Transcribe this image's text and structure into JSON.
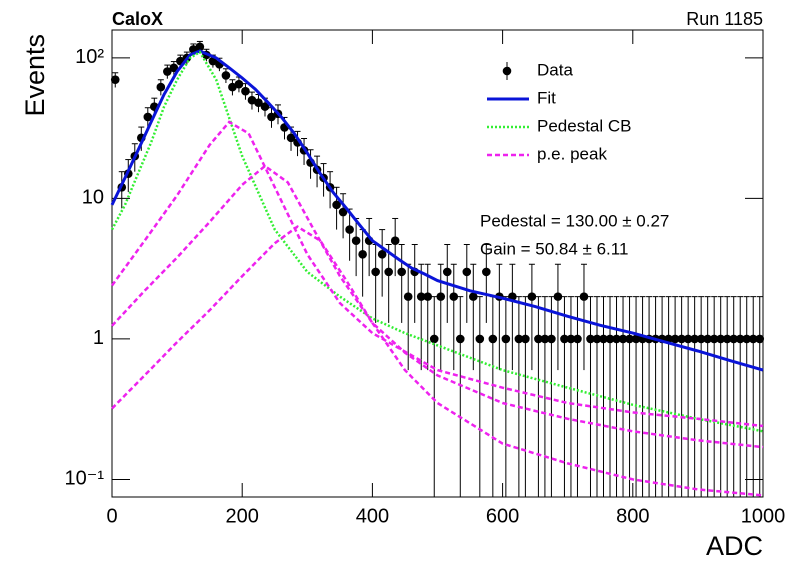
{
  "chart_data": {
    "type": "scatter",
    "title": "CaloX",
    "subtitle": "Run 1185",
    "x_label": "ADC",
    "y_label": "Events",
    "annotations": [
      "Pedestal = 130.00 ± 0.27",
      "Gain = 50.84 ± 6.11"
    ],
    "ylog": true,
    "xlim": [
      0,
      1000
    ],
    "ylim": [
      0.075,
      158
    ],
    "xticks": [
      0,
      200,
      400,
      600,
      800,
      1000
    ],
    "yticks": [
      {
        "value": 0.1,
        "label": "10⁻¹"
      },
      1,
      10,
      {
        "value": 100,
        "label": "10²"
      }
    ],
    "legend": "top-right",
    "series": [
      {
        "name": "Data",
        "color": "#000000",
        "style": "markers",
        "x": [
          5,
          15,
          25,
          35,
          45,
          55,
          65,
          75,
          85,
          95,
          105,
          115,
          125,
          135,
          145,
          155,
          165,
          175,
          185,
          195,
          205,
          215,
          225,
          235,
          245,
          255,
          265,
          275,
          285,
          295,
          305,
          315,
          325,
          335,
          345,
          355,
          365,
          375,
          385,
          395,
          405,
          415,
          425,
          435,
          445,
          455,
          465,
          475,
          485,
          495,
          505,
          515,
          525,
          535,
          545,
          555,
          565,
          575,
          585,
          595,
          605,
          615,
          625,
          635,
          645,
          655,
          665,
          675,
          685,
          695,
          705,
          715,
          725,
          735,
          745,
          755,
          765,
          775,
          785,
          795,
          805,
          815,
          825,
          835,
          845,
          855,
          865,
          875,
          885,
          895,
          905,
          915,
          925,
          935,
          945,
          955,
          965,
          975,
          985,
          995
        ],
        "values": [
          70,
          12,
          15,
          20,
          27,
          38,
          45,
          62,
          80,
          85,
          95,
          100,
          115,
          120,
          105,
          95,
          90,
          75,
          62,
          65,
          58,
          50,
          48,
          45,
          38,
          40,
          32,
          27,
          25,
          22,
          18,
          16,
          14,
          12,
          9,
          8,
          6,
          5,
          4,
          5,
          3,
          4,
          3,
          5,
          3,
          2,
          3,
          2,
          2,
          1,
          2,
          3,
          2,
          1,
          3,
          2,
          1,
          3,
          1,
          2,
          1,
          2,
          1,
          1,
          2,
          1,
          1,
          1,
          2,
          1,
          1,
          1,
          2,
          1,
          1,
          1,
          1,
          1,
          1,
          1,
          1,
          1,
          1,
          1,
          1,
          1,
          1,
          1,
          1,
          1,
          1,
          1,
          1,
          1,
          1,
          1,
          1,
          1,
          1,
          1
        ],
        "errors": [
          8.4,
          3.5,
          3.9,
          4.5,
          5.2,
          6.2,
          6.7,
          7.9,
          8.9,
          9.2,
          9.7,
          10,
          10.7,
          11,
          10.2,
          9.7,
          9.5,
          8.7,
          7.9,
          8.1,
          7.6,
          7.1,
          6.9,
          6.7,
          6.2,
          6.3,
          5.7,
          5.2,
          5,
          4.7,
          4.2,
          4,
          3.7,
          3.5,
          3,
          2.8,
          2.4,
          2.2,
          2,
          2.2,
          1.7,
          2,
          1.7,
          2.2,
          1.7,
          1.4,
          1.7,
          1.4,
          1.4,
          1,
          1.4,
          1.7,
          1.4,
          1,
          1.7,
          1.4,
          1,
          1.7,
          1,
          1.4,
          1,
          1.4,
          1,
          1,
          1.4,
          1,
          1,
          1,
          1.4,
          1,
          1,
          1,
          1.4,
          1,
          1,
          1,
          1,
          1,
          1,
          1,
          1,
          1,
          1,
          1,
          1,
          1,
          1,
          1,
          1,
          1,
          1,
          1,
          1,
          1,
          1,
          1,
          1,
          1,
          1,
          1
        ]
      },
      {
        "name": "Fit",
        "color": "#0a14d8",
        "style": "solid",
        "x": [
          0,
          20,
          40,
          60,
          80,
          100,
          120,
          135,
          160,
          180,
          200,
          220,
          240,
          260,
          280,
          300,
          320,
          340,
          360,
          380,
          400,
          420,
          440,
          460,
          480,
          500,
          550,
          600,
          650,
          700,
          750,
          800,
          850,
          900,
          950,
          1000
        ],
        "values": [
          9,
          14,
          22,
          35,
          55,
          80,
          105,
          112,
          100,
          85,
          72,
          60,
          48,
          38,
          29,
          21,
          15,
          11,
          8.5,
          6.5,
          5,
          4.3,
          3.7,
          3.2,
          2.9,
          2.6,
          2.2,
          1.95,
          1.7,
          1.45,
          1.25,
          1.1,
          0.95,
          0.82,
          0.7,
          0.6
        ]
      },
      {
        "name": "Pedestal CB",
        "color": "#33ee33",
        "style": "dotted",
        "x": [
          0,
          20,
          40,
          60,
          80,
          100,
          120,
          135,
          160,
          200,
          250,
          300,
          350,
          400,
          450,
          500,
          600,
          700,
          800,
          900,
          1000
        ],
        "values": [
          6,
          9,
          15,
          25,
          45,
          70,
          100,
          110,
          70,
          20,
          6,
          3,
          2,
          1.4,
          1.1,
          0.9,
          0.6,
          0.45,
          0.34,
          0.27,
          0.22
        ]
      },
      {
        "name": "p.e. peak",
        "color": "#ee22ee",
        "style": "dashed",
        "curves": [
          {
            "x": [
              0,
              50,
              100,
              150,
              180,
              210,
              250,
              300,
              350,
              400,
              500,
              600,
              700,
              800,
              900,
              1000
            ],
            "values": [
              2.4,
              5,
              10.5,
              24,
              35,
              29,
              12,
              4,
              1.8,
              1.1,
              0.6,
              0.45,
              0.35,
              0.3,
              0.27,
              0.24
            ]
          },
          {
            "x": [
              0,
              50,
              100,
              150,
              200,
              235,
              270,
              310,
              350,
              400,
              450,
              500,
              600,
              700,
              800,
              900,
              1000
            ],
            "values": [
              1.24,
              2.2,
              3.8,
              6.8,
              12.5,
              17,
              13,
              6,
              2.8,
              1.3,
              0.8,
              0.55,
              0.35,
              0.27,
              0.22,
              0.19,
              0.17
            ]
          },
          {
            "x": [
              0,
              50,
              100,
              150,
              200,
              250,
              285,
              320,
              360,
              400,
              450,
              500,
              600,
              700,
              800,
              900,
              1000
            ],
            "values": [
              0.32,
              0.55,
              0.95,
              1.6,
              2.8,
              4.8,
              6.3,
              5,
              2.6,
              1.3,
              0.6,
              0.35,
              0.18,
              0.13,
              0.1,
              0.085,
              0.077
            ]
          }
        ]
      }
    ]
  }
}
